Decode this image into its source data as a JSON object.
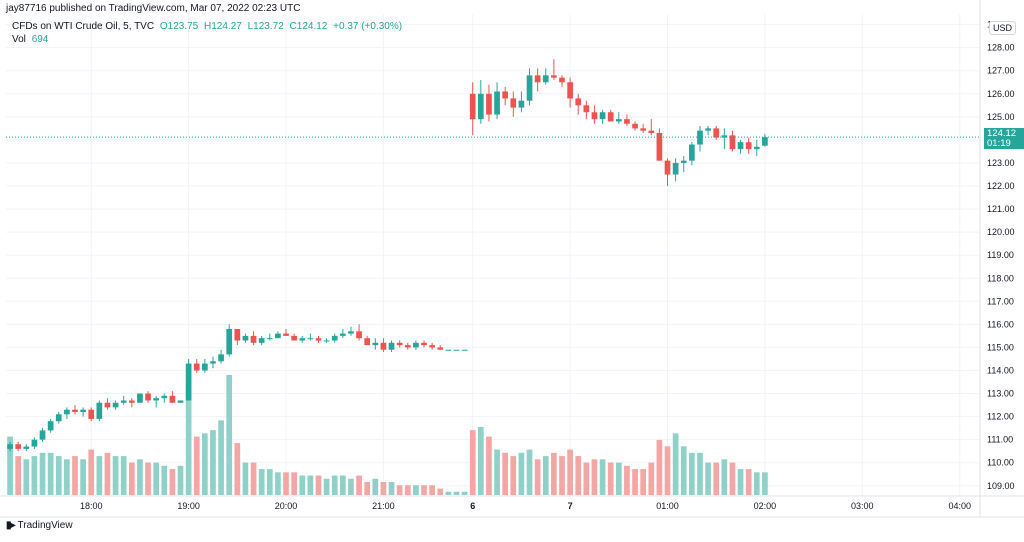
{
  "header": {
    "published": "jay87716 published on TradingView.com, Mar 07, 2022 02:23 UTC"
  },
  "legend": {
    "symbol": "CFDs on WTI Crude Oil, 5, TVC",
    "open": "O123.75",
    "high": "H124.27",
    "low": "L123.72",
    "close": "C124.12",
    "change": "+0.37 (+0.30%)",
    "vol_label": "Vol",
    "vol_value": "694"
  },
  "currency": "USD",
  "current_price": {
    "price": "124.12",
    "countdown": "01:19",
    "value": 124.12
  },
  "footer": {
    "brand": "TradingView"
  },
  "colors": {
    "up": "#26a69a",
    "down": "#ef5350",
    "vol_up": "#8fd1c8",
    "vol_down": "#f4a6a4"
  },
  "chart_data": {
    "type": "candlestick",
    "y_axis_ticks": [
      "109.00",
      "110.00",
      "111.00",
      "112.00",
      "113.00",
      "114.00",
      "115.00",
      "116.00",
      "117.00",
      "118.00",
      "119.00",
      "120.00",
      "121.00",
      "122.00",
      "123.00",
      "124.00",
      "125.00",
      "126.00",
      "127.00",
      "128.00",
      "129.00"
    ],
    "ylim": [
      108.6,
      129.2
    ],
    "x_axis_ticks": [
      {
        "label": "18:00",
        "bar": 10
      },
      {
        "label": "19:00",
        "bar": 22
      },
      {
        "label": "20:00",
        "bar": 34
      },
      {
        "label": "21:00",
        "bar": 46
      },
      {
        "label": "6",
        "bar": 57
      },
      {
        "label": "7",
        "bar": 69
      },
      {
        "label": "01:00",
        "bar": 81
      },
      {
        "label": "02:00",
        "bar": 93
      },
      {
        "label": "03:00",
        "bar": 105
      },
      {
        "label": "04:00",
        "bar": 117
      }
    ],
    "bars_total": 120,
    "candles": [
      [
        110.6,
        110.9,
        110.5,
        110.8,
        18
      ],
      [
        110.8,
        110.9,
        110.5,
        110.6,
        12
      ],
      [
        110.6,
        110.8,
        110.5,
        110.7,
        11
      ],
      [
        110.7,
        111.1,
        110.6,
        111.0,
        12
      ],
      [
        111.0,
        111.5,
        110.9,
        111.4,
        13
      ],
      [
        111.4,
        111.9,
        111.3,
        111.8,
        13
      ],
      [
        111.8,
        112.2,
        111.7,
        112.1,
        12
      ],
      [
        112.1,
        112.4,
        111.9,
        112.3,
        11
      ],
      [
        112.3,
        112.5,
        112.1,
        112.2,
        12
      ],
      [
        112.2,
        112.4,
        112.0,
        112.3,
        11
      ],
      [
        112.3,
        112.4,
        111.8,
        111.9,
        14
      ],
      [
        111.9,
        112.7,
        111.8,
        112.6,
        12
      ],
      [
        112.6,
        112.8,
        112.3,
        112.4,
        13
      ],
      [
        112.4,
        112.7,
        112.3,
        112.6,
        12
      ],
      [
        112.6,
        112.9,
        112.5,
        112.7,
        12
      ],
      [
        112.7,
        112.8,
        112.4,
        112.6,
        10
      ],
      [
        112.6,
        113.0,
        112.6,
        113.0,
        11
      ],
      [
        113.0,
        113.1,
        112.6,
        112.7,
        10
      ],
      [
        112.7,
        112.9,
        112.4,
        112.8,
        10
      ],
      [
        112.8,
        113.0,
        112.6,
        112.9,
        9
      ],
      [
        112.9,
        113.1,
        112.6,
        112.6,
        8
      ],
      [
        112.6,
        112.7,
        112.6,
        112.7,
        9
      ],
      [
        112.7,
        114.5,
        112.7,
        114.3,
        34
      ],
      [
        114.3,
        114.5,
        113.9,
        114.0,
        18
      ],
      [
        114.0,
        114.5,
        113.9,
        114.3,
        19
      ],
      [
        114.3,
        114.6,
        114.1,
        114.4,
        20
      ],
      [
        114.4,
        114.9,
        114.3,
        114.7,
        23
      ],
      [
        114.7,
        116.0,
        114.6,
        115.8,
        37
      ],
      [
        115.8,
        115.8,
        115.1,
        115.3,
        16
      ],
      [
        115.3,
        115.6,
        115.2,
        115.5,
        10
      ],
      [
        115.5,
        115.7,
        115.1,
        115.2,
        10
      ],
      [
        115.2,
        115.5,
        115.1,
        115.4,
        8
      ],
      [
        115.4,
        115.6,
        115.3,
        115.4,
        8
      ],
      [
        115.4,
        115.7,
        115.4,
        115.6,
        7
      ],
      [
        115.6,
        115.8,
        115.5,
        115.5,
        7
      ],
      [
        115.5,
        115.6,
        115.3,
        115.3,
        7
      ],
      [
        115.3,
        115.5,
        115.2,
        115.4,
        6
      ],
      [
        115.4,
        115.6,
        115.3,
        115.4,
        6
      ],
      [
        115.4,
        115.5,
        115.2,
        115.3,
        6
      ],
      [
        115.3,
        115.4,
        115.2,
        115.3,
        5
      ],
      [
        115.3,
        115.6,
        115.2,
        115.5,
        6
      ],
      [
        115.5,
        115.8,
        115.4,
        115.6,
        6
      ],
      [
        115.6,
        115.9,
        115.5,
        115.7,
        5
      ],
      [
        115.7,
        116.0,
        115.3,
        115.4,
        6
      ],
      [
        115.4,
        115.5,
        115.1,
        115.1,
        4
      ],
      [
        115.1,
        115.4,
        114.9,
        115.2,
        5
      ],
      [
        115.2,
        115.4,
        114.8,
        114.9,
        4
      ],
      [
        114.9,
        115.3,
        114.8,
        115.2,
        4
      ],
      [
        115.2,
        115.3,
        115.0,
        115.1,
        3
      ],
      [
        115.1,
        115.2,
        114.9,
        115.0,
        3
      ],
      [
        115.0,
        115.3,
        114.9,
        115.2,
        3
      ],
      [
        115.2,
        115.3,
        115.0,
        115.1,
        3
      ],
      [
        115.1,
        115.2,
        114.9,
        115.0,
        3
      ],
      [
        115.0,
        115.1,
        114.9,
        114.9,
        2
      ],
      [
        114.9,
        114.9,
        114.9,
        114.9,
        1
      ],
      [
        114.9,
        114.9,
        114.9,
        114.9,
        1
      ],
      [
        114.9,
        114.9,
        114.9,
        114.9,
        1
      ],
      [
        126.0,
        126.5,
        124.2,
        124.9,
        20
      ],
      [
        124.9,
        126.6,
        124.7,
        126.0,
        21
      ],
      [
        126.0,
        126.4,
        124.8,
        125.1,
        18
      ],
      [
        125.1,
        126.5,
        124.9,
        126.1,
        14
      ],
      [
        126.1,
        126.3,
        125.5,
        125.8,
        13
      ],
      [
        125.8,
        126.1,
        125.0,
        125.4,
        12
      ],
      [
        125.4,
        126.1,
        125.2,
        125.7,
        13
      ],
      [
        125.7,
        127.1,
        125.5,
        126.8,
        14
      ],
      [
        126.8,
        127.1,
        126.1,
        126.5,
        11
      ],
      [
        126.5,
        127.1,
        126.4,
        126.8,
        12
      ],
      [
        126.8,
        127.5,
        126.6,
        126.7,
        13
      ],
      [
        126.7,
        126.8,
        126.3,
        126.5,
        12
      ],
      [
        126.5,
        126.7,
        125.4,
        125.8,
        14
      ],
      [
        125.8,
        126.0,
        125.1,
        125.5,
        12
      ],
      [
        125.5,
        125.7,
        124.9,
        125.2,
        10
      ],
      [
        125.2,
        125.5,
        124.7,
        124.9,
        11
      ],
      [
        124.9,
        125.3,
        124.7,
        125.2,
        11
      ],
      [
        125.2,
        125.3,
        124.8,
        124.8,
        10
      ],
      [
        124.8,
        125.2,
        124.7,
        124.9,
        10
      ],
      [
        124.9,
        125.1,
        124.6,
        124.7,
        9
      ],
      [
        124.7,
        124.8,
        124.4,
        124.5,
        8
      ],
      [
        124.5,
        124.7,
        124.3,
        124.4,
        8
      ],
      [
        124.4,
        124.9,
        124.2,
        124.3,
        10
      ],
      [
        124.3,
        124.5,
        123.1,
        123.1,
        17
      ],
      [
        123.1,
        123.2,
        122.0,
        122.5,
        15
      ],
      [
        122.5,
        123.2,
        122.2,
        123.0,
        19
      ],
      [
        123.0,
        123.3,
        122.6,
        123.1,
        15
      ],
      [
        123.1,
        123.9,
        122.9,
        123.8,
        13
      ],
      [
        123.8,
        124.6,
        123.5,
        124.4,
        13
      ],
      [
        124.4,
        124.6,
        124.2,
        124.5,
        10
      ],
      [
        124.5,
        124.6,
        124.0,
        124.1,
        10
      ],
      [
        124.1,
        124.5,
        123.6,
        124.2,
        11
      ],
      [
        124.2,
        124.4,
        123.5,
        123.6,
        10
      ],
      [
        123.6,
        124.0,
        123.4,
        123.9,
        8
      ],
      [
        123.9,
        124.1,
        123.4,
        123.6,
        8
      ],
      [
        123.6,
        124.0,
        123.3,
        123.7,
        7
      ],
      [
        123.75,
        124.27,
        123.72,
        124.12,
        7
      ]
    ]
  }
}
